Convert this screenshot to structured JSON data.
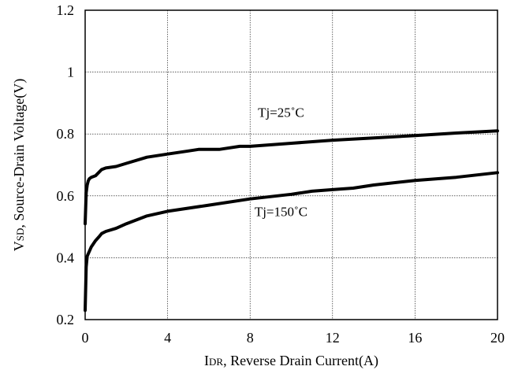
{
  "chart_data": {
    "type": "line",
    "xlabel": {
      "prefix": "I",
      "subscript": "DR",
      "text": ", Reverse Drain Current(A)"
    },
    "ylabel": {
      "prefix": "V",
      "subscript": "SD",
      "text": ", Source-Drain Voltage(V)"
    },
    "xlim": [
      0,
      20
    ],
    "ylim": [
      0.2,
      1.2
    ],
    "x_ticks": [
      0,
      4,
      8,
      12,
      16,
      20
    ],
    "y_ticks": [
      0.2,
      0.4,
      0.6,
      0.8,
      1.0,
      1.2
    ],
    "x_tick_labels": [
      "0",
      "4",
      "8",
      "12",
      "16",
      "20"
    ],
    "y_tick_labels": [
      "0.2",
      "0.4",
      "0.6",
      "0.8",
      "1",
      "1.2"
    ],
    "grid": true,
    "series": [
      {
        "annotation": "Tj=25˚C",
        "annotation_at": [
          9.5,
          0.855
        ],
        "x": [
          0.0,
          0.05,
          0.1,
          0.15,
          0.2,
          0.3,
          0.5,
          0.8,
          1.0,
          1.5,
          2.0,
          3.0,
          4.0,
          5.0,
          5.5,
          6.5,
          7.5,
          8.0,
          10.0,
          12.0,
          14.0,
          16.0,
          18.0,
          20.0
        ],
        "y": [
          0.51,
          0.61,
          0.635,
          0.648,
          0.655,
          0.66,
          0.665,
          0.685,
          0.69,
          0.695,
          0.705,
          0.725,
          0.735,
          0.745,
          0.75,
          0.75,
          0.76,
          0.76,
          0.77,
          0.78,
          0.787,
          0.795,
          0.803,
          0.81
        ]
      },
      {
        "annotation": "Tj=150˚C",
        "annotation_at": [
          9.5,
          0.535
        ],
        "x": [
          0.0,
          0.05,
          0.1,
          0.2,
          0.3,
          0.5,
          0.7,
          0.8,
          1.0,
          1.5,
          2.0,
          3.0,
          4.0,
          6.0,
          8.0,
          10.0,
          11.0,
          12.0,
          13.0,
          14.0,
          16.0,
          18.0,
          20.0
        ],
        "y": [
          0.23,
          0.37,
          0.405,
          0.42,
          0.435,
          0.455,
          0.47,
          0.478,
          0.485,
          0.495,
          0.51,
          0.535,
          0.55,
          0.57,
          0.59,
          0.605,
          0.615,
          0.62,
          0.625,
          0.635,
          0.65,
          0.66,
          0.675
        ]
      }
    ]
  }
}
